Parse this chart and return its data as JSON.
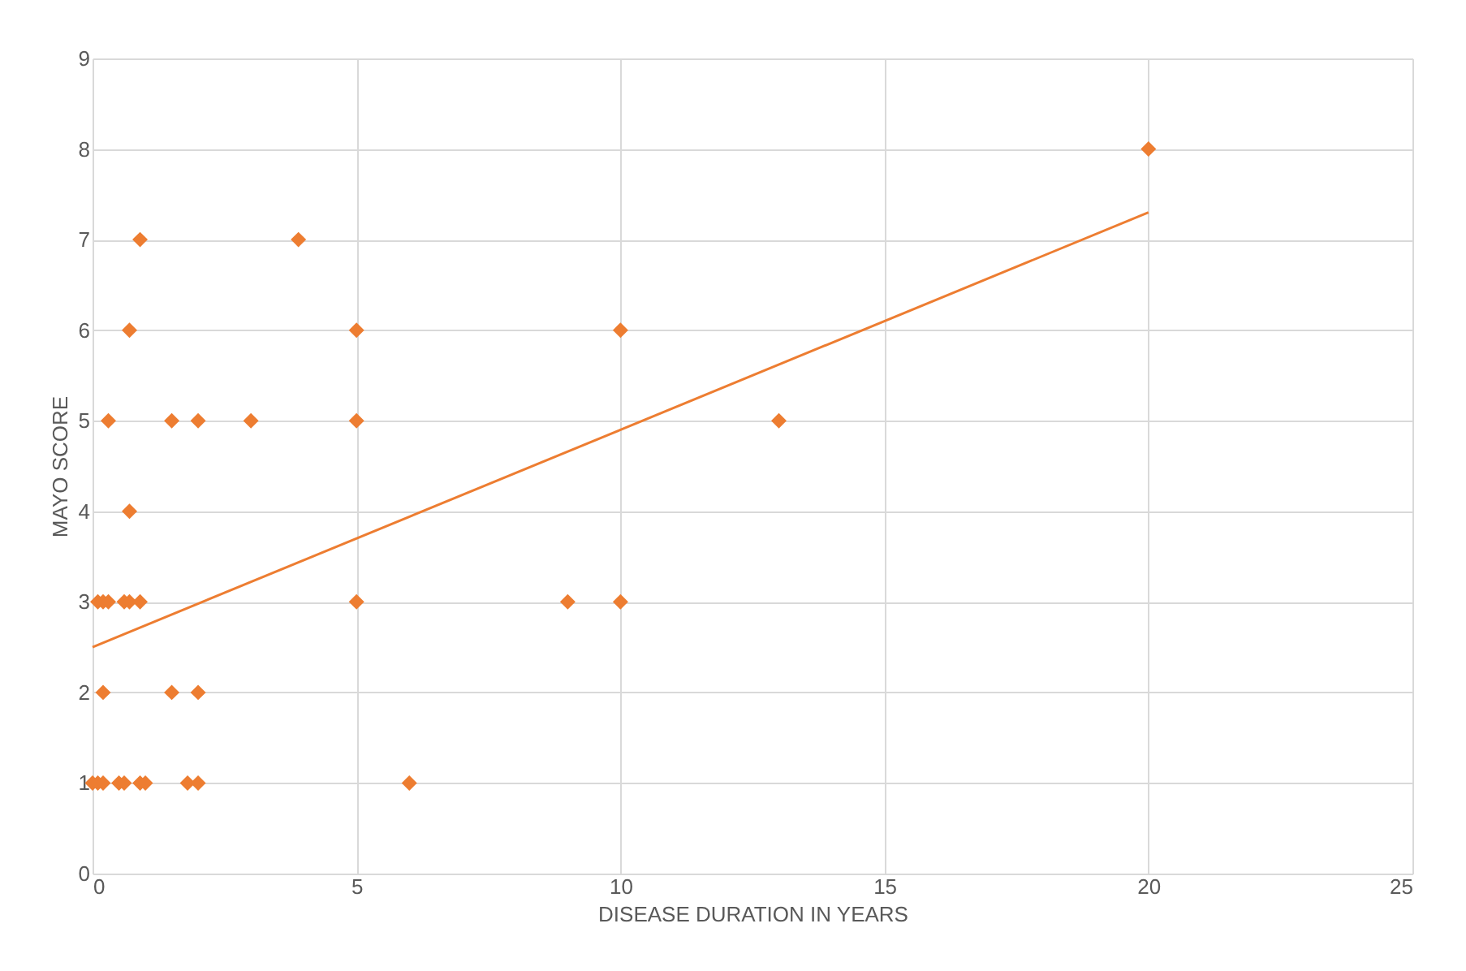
{
  "chart_data": {
    "type": "scatter",
    "xlabel": "DISEASE DURATION IN YEARS",
    "ylabel": "MAYO SCORE",
    "xlim": [
      0,
      25
    ],
    "xticks": [
      0,
      5,
      10,
      15,
      20,
      25
    ],
    "ylim": [
      0,
      9
    ],
    "yticks": [
      0,
      1,
      2,
      3,
      4,
      5,
      6,
      7,
      8,
      9
    ],
    "grid": true,
    "marker": "diamond",
    "series": [
      {
        "color": "#ed7d31",
        "x": [
          20,
          0.9,
          3.9,
          0.7,
          5,
          10,
          0.3,
          1.5,
          2,
          3,
          5,
          13,
          0.7,
          0.1,
          0.2,
          0.3,
          0.6,
          0.7,
          0.9,
          5,
          9,
          10,
          0.2,
          1.5,
          2,
          0,
          0.1,
          0.2,
          0.5,
          0.6,
          0.9,
          1,
          1.8,
          2,
          6
        ],
        "values": [
          8,
          7,
          7,
          6,
          6,
          6,
          5,
          5,
          5,
          5,
          5,
          5,
          4,
          3,
          3,
          3,
          3,
          3,
          3,
          3,
          3,
          3,
          2,
          2,
          2,
          1,
          1,
          1,
          1,
          1,
          1,
          1,
          1,
          1,
          1
        ]
      },
      {
        "type": "line",
        "color": "#ed7d31",
        "x": [
          0,
          20
        ],
        "values": [
          2.5,
          7.3
        ],
        "marker": "none"
      }
    ]
  }
}
